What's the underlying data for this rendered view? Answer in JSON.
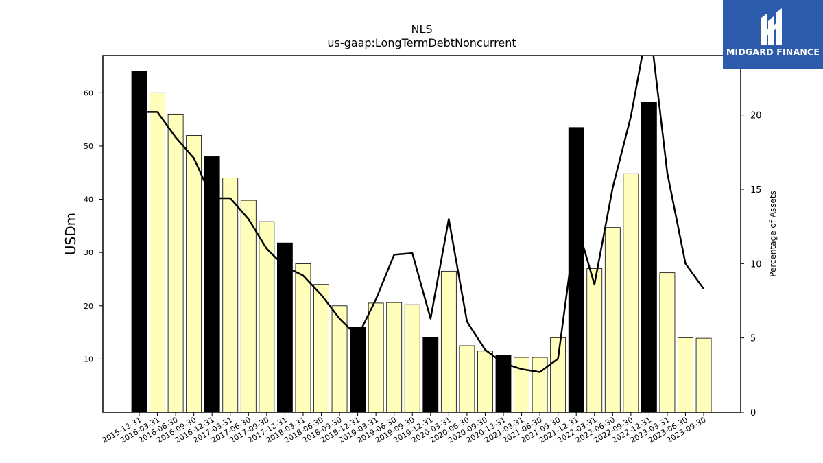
{
  "chart_data": {
    "type": "bar",
    "title": "NLS",
    "subtitle": "us-gaap:LongTermDebtNoncurrent",
    "ylabel": "USDm",
    "y2label": "Percentage of Assets",
    "categories": [
      "2015-12-31",
      "2016-03-31",
      "2016-06-30",
      "2016-09-30",
      "2016-12-31",
      "2017-03-31",
      "2017-06-30",
      "2017-09-30",
      "2017-12-31",
      "2018-03-31",
      "2018-06-30",
      "2018-09-30",
      "2018-12-31",
      "2019-03-31",
      "2019-06-30",
      "2019-09-30",
      "2019-12-31",
      "2020-03-31",
      "2020-06-30",
      "2020-09-30",
      "2020-12-31",
      "2021-03-31",
      "2021-06-30",
      "2021-09-30",
      "2021-12-31",
      "2022-03-31",
      "2022-06-30",
      "2022-09-30",
      "2022-12-31",
      "2023-03-31",
      "2023-06-30",
      "2023-09-30"
    ],
    "series": [
      {
        "values": [
          64.0,
          60.0,
          56.0,
          52.0,
          48.0,
          44.0,
          39.8,
          35.8,
          31.8,
          27.9,
          24.0,
          20.0,
          16.0,
          20.5,
          20.6,
          20.2,
          14.0,
          26.5,
          12.5,
          11.5,
          10.7,
          10.3,
          10.3,
          14.0,
          53.5,
          27.0,
          34.7,
          44.8,
          58.2,
          26.2,
          14.0,
          13.9
        ],
        "colors": [
          "#000000",
          "#ffffbb",
          "#ffffbb",
          "#ffffbb",
          "#000000",
          "#ffffbb",
          "#ffffbb",
          "#ffffbb",
          "#000000",
          "#ffffbb",
          "#ffffbb",
          "#ffffbb",
          "#000000",
          "#ffffbb",
          "#ffffbb",
          "#ffffbb",
          "#000000",
          "#ffffbb",
          "#ffffbb",
          "#ffffbb",
          "#000000",
          "#ffffbb",
          "#ffffbb",
          "#ffffbb",
          "#000000",
          "#ffffbb",
          "#ffffbb",
          "#ffffbb",
          "#000000",
          "#ffffbb",
          "#ffffbb",
          "#ffffbb"
        ]
      },
      {
        "type": "line",
        "axis": "right",
        "values": [
          20.2,
          20.2,
          18.5,
          17.1,
          14.4,
          14.4,
          13.0,
          11.0,
          9.8,
          9.2,
          7.9,
          6.3,
          5.1,
          7.6,
          10.6,
          10.7,
          6.3,
          13.0,
          6.1,
          4.2,
          3.3,
          2.9,
          2.7,
          3.6,
          12.8,
          8.6,
          15.1,
          19.9,
          26.5,
          16.1,
          10.0,
          8.3
        ]
      }
    ],
    "ylim": [
      0,
      67
    ],
    "yticks": [
      10,
      20,
      30,
      40,
      50,
      60
    ],
    "y2lim": [
      0,
      24
    ],
    "y2ticks": [
      0,
      5,
      10,
      15,
      20
    ],
    "grid": false,
    "legend": "none"
  },
  "logo": {
    "name": "MIDGARD FINANCE"
  },
  "colors": {
    "bar_highlight": "#000000",
    "bar_regular": "#ffffbb",
    "line": "#000000",
    "logo_bg": "#2c5bab"
  }
}
